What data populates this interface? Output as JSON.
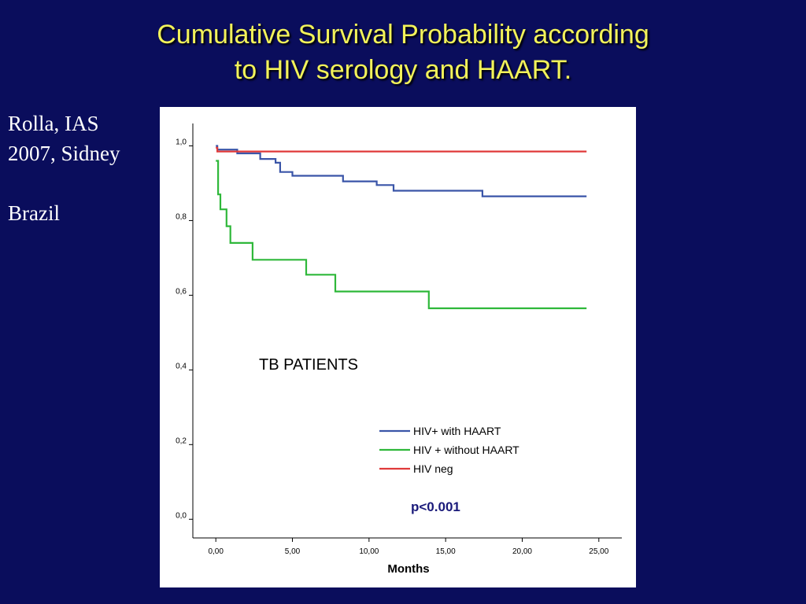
{
  "slide": {
    "title_line1": "Cumulative Survival Probability according",
    "title_line2": "to HIV serology and HAART.",
    "citation_line1": "Rolla, IAS",
    "citation_line2": "2007, Sidney",
    "country": "Brazil"
  },
  "chart_data": {
    "type": "line",
    "title": "",
    "xlabel": "Months",
    "ylabel": "",
    "xlim": [
      -1.5,
      26.5
    ],
    "ylim": [
      -0.05,
      1.06
    ],
    "x_ticks": [
      0,
      5,
      10,
      15,
      20,
      25
    ],
    "x_tick_labels": [
      "0,00",
      "5,00",
      "10,00",
      "15,00",
      "20,00",
      "25,00"
    ],
    "y_ticks": [
      0,
      0.2,
      0.4,
      0.6,
      0.8,
      1.0
    ],
    "y_tick_labels": [
      "0,0",
      "0,2",
      "0,4",
      "0,6",
      "0,8",
      "1,0"
    ],
    "grid": false,
    "legend_position": "lower-right",
    "series": [
      {
        "name": "HIV+ with HAART",
        "color": "#3a55a8",
        "step": true,
        "points": [
          [
            0,
            1.0
          ],
          [
            0.1,
            0.99
          ],
          [
            1.4,
            0.98
          ],
          [
            2.9,
            0.965
          ],
          [
            3.9,
            0.955
          ],
          [
            4.2,
            0.93
          ],
          [
            5.0,
            0.92
          ],
          [
            8.3,
            0.905
          ],
          [
            10.5,
            0.895
          ],
          [
            11.6,
            0.88
          ],
          [
            17.4,
            0.865
          ],
          [
            24.2,
            0.865
          ]
        ]
      },
      {
        "name": "HIV + without HAART",
        "color": "#2fb83a",
        "step": true,
        "points": [
          [
            0,
            0.96
          ],
          [
            0.15,
            0.87
          ],
          [
            0.3,
            0.83
          ],
          [
            0.7,
            0.785
          ],
          [
            0.95,
            0.74
          ],
          [
            2.4,
            0.695
          ],
          [
            5.9,
            0.655
          ],
          [
            7.8,
            0.61
          ],
          [
            13.9,
            0.565
          ],
          [
            24.2,
            0.565
          ]
        ]
      },
      {
        "name": "HIV neg",
        "color": "#e03a3a",
        "step": true,
        "points": [
          [
            0,
            0.995
          ],
          [
            0.1,
            0.985
          ],
          [
            24.2,
            0.985
          ]
        ]
      }
    ],
    "annotations": [
      "TB PATIENTS",
      "p<0.001"
    ]
  }
}
